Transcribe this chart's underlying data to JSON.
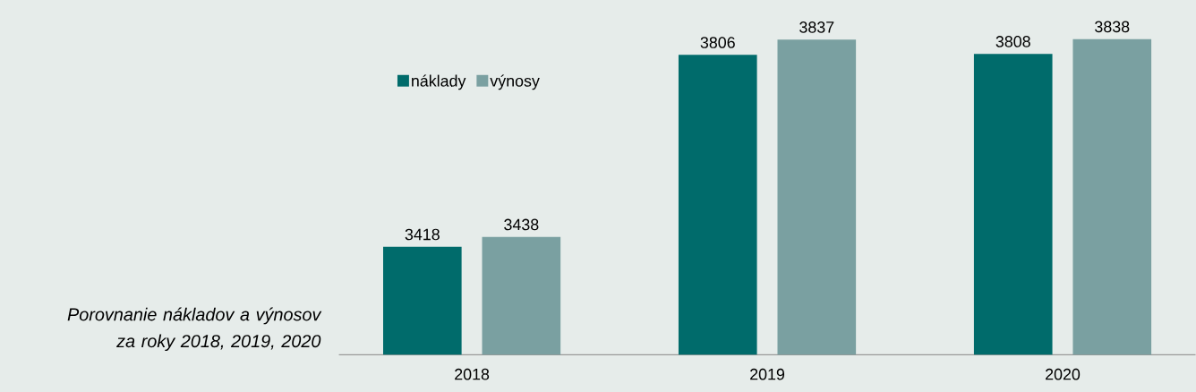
{
  "chart_data": {
    "type": "bar",
    "title": "Porovnanie nákladov a výnosov za roky 2018, 2019, 2020",
    "categories": [
      "2018",
      "2019",
      "2020"
    ],
    "series": [
      {
        "name": "náklady",
        "color": "#006b6b",
        "values": [
          3418,
          3806,
          3808
        ]
      },
      {
        "name": "výnosy",
        "color": "#7aa0a1",
        "values": [
          3438,
          3837,
          3838
        ]
      }
    ],
    "ylim": [
      3200,
      3917
    ],
    "data_labels": true,
    "legend": "top left"
  }
}
